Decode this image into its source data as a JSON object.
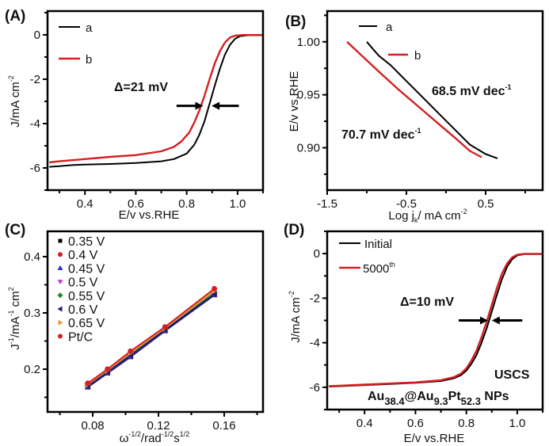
{
  "chart_data": [
    {
      "id": "A",
      "type": "line",
      "panel_label": "(A)",
      "xlabel": "E/v vs.RHE",
      "ylabel": "J/mA cm",
      "ylabel_sup": "-2",
      "xlim": [
        0.253,
        1.1
      ],
      "ylim": [
        -7,
        1.07
      ],
      "xticks": [
        0.4,
        0.6,
        0.8,
        1.0
      ],
      "xtick_labels": [
        "0.4",
        "0.6",
        "0.8",
        "1.0"
      ],
      "yticks": [
        0,
        -2,
        -4,
        -6
      ],
      "ytick_labels": [
        "0",
        "-2",
        "-4",
        "-6"
      ],
      "legend": {
        "position": "top-left",
        "entries": [
          {
            "name": "a",
            "color": "#000000"
          },
          {
            "name": "b",
            "color": "#d42020"
          }
        ]
      },
      "annotations": [
        {
          "text": "Δ=21 mV"
        }
      ],
      "arrows": {
        "y": -3.2,
        "left_from": 0.76,
        "left_to": 0.865,
        "right_from": 1.005,
        "right_to": 0.898
      },
      "series": [
        {
          "name": "a",
          "color": "#000000",
          "x": [
            0.26,
            0.3,
            0.35,
            0.4,
            0.5,
            0.6,
            0.7,
            0.75,
            0.8,
            0.83,
            0.85,
            0.87,
            0.89,
            0.91,
            0.93,
            0.95,
            0.97,
            0.99,
            1.01,
            1.04,
            1.1
          ],
          "y": [
            -5.95,
            -5.92,
            -5.87,
            -5.85,
            -5.82,
            -5.78,
            -5.7,
            -5.6,
            -5.35,
            -4.95,
            -4.5,
            -3.9,
            -3.1,
            -2.3,
            -1.55,
            -0.9,
            -0.45,
            -0.18,
            -0.06,
            -0.02,
            -0.02
          ]
        },
        {
          "name": "b",
          "color": "#d42020",
          "x": [
            0.26,
            0.3,
            0.35,
            0.4,
            0.5,
            0.6,
            0.7,
            0.75,
            0.78,
            0.81,
            0.83,
            0.85,
            0.87,
            0.89,
            0.91,
            0.93,
            0.95,
            0.97,
            0.99,
            1.02,
            1.1
          ],
          "y": [
            -5.75,
            -5.7,
            -5.65,
            -5.6,
            -5.5,
            -5.42,
            -5.25,
            -5.05,
            -4.8,
            -4.4,
            -3.95,
            -3.4,
            -2.75,
            -2.0,
            -1.3,
            -0.75,
            -0.35,
            -0.12,
            -0.04,
            -0.01,
            -0.01
          ]
        }
      ]
    },
    {
      "id": "B",
      "type": "line",
      "panel_label": "(B)",
      "xlabel": "Log j",
      "xlabel_sub": "k",
      "xlabel_tail": "/ mA cm",
      "xlabel_sup": "-2",
      "ylabel": "E/v vs.RHE",
      "xlim": [
        -1.5,
        1.22
      ],
      "ylim": [
        0.86,
        1.029
      ],
      "xticks": [
        -1.5,
        -0.5,
        0.5
      ],
      "xtick_labels": [
        "-1.5",
        "-0.5",
        "0.5"
      ],
      "yticks": [
        1.0,
        0.95,
        0.9
      ],
      "ytick_labels": [
        "1.00",
        "0.95",
        "0.90"
      ],
      "legend": {
        "position": "top-center",
        "entries": [
          {
            "name": "a",
            "color": "#000000"
          },
          {
            "name": "b",
            "color": "#d42020"
          }
        ]
      },
      "annotations": [
        {
          "text": "68.5 mV dec",
          "sup": "-1",
          "for": "a"
        },
        {
          "text": "70.7 mV dec",
          "sup": "-1",
          "for": "b"
        }
      ],
      "series": [
        {
          "name": "a",
          "color": "#000000",
          "x": [
            -1.0,
            -0.85,
            -0.7,
            -0.5,
            -0.3,
            -0.1,
            0.1,
            0.3,
            0.5,
            0.65
          ],
          "y": [
            1.0,
            0.987,
            0.978,
            0.963,
            0.948,
            0.933,
            0.918,
            0.903,
            0.894,
            0.89
          ]
        },
        {
          "name": "b",
          "color": "#d42020",
          "x": [
            -1.25,
            -1.05,
            -0.85,
            -0.6,
            -0.35,
            -0.1,
            0.15,
            0.3,
            0.45
          ],
          "y": [
            1.0,
            0.986,
            0.972,
            0.955,
            0.939,
            0.923,
            0.907,
            0.897,
            0.891
          ]
        }
      ]
    },
    {
      "id": "C",
      "type": "scatter",
      "panel_label": "(C)",
      "xlabel": "ω",
      "xlabel_parts": [
        "ω",
        "-1/2",
        "/rad",
        "-1/2",
        "s",
        "1/2"
      ],
      "ylabel_parts": [
        "J",
        "-1",
        "/mA",
        "-1",
        " cm",
        "2"
      ],
      "xlim": [
        0.0525,
        0.1836
      ],
      "ylim": [
        0.124,
        0.445
      ],
      "xticks": [
        0.08,
        0.12,
        0.16
      ],
      "xtick_labels": [
        "0.08",
        "0.12",
        "0.16"
      ],
      "yticks": [
        0.4,
        0.3,
        0.2
      ],
      "ytick_labels": [
        "0.4",
        "0.3",
        "0.2"
      ],
      "legend": {
        "position": "top-left"
      },
      "x": [
        0.077,
        0.089,
        0.103,
        0.124,
        0.154
      ],
      "series": [
        {
          "name": "0.35 V",
          "marker": "square",
          "color": "#000000",
          "values": [
            0.168,
            0.193,
            0.222,
            0.268,
            0.332
          ]
        },
        {
          "name": "0.4 V",
          "marker": "circle",
          "color": "#d42020",
          "values": [
            0.169,
            0.194,
            0.223,
            0.269,
            0.333
          ]
        },
        {
          "name": "0.45 V",
          "marker": "triangle-up",
          "color": "#1f2fc0",
          "values": [
            0.169,
            0.194,
            0.223,
            0.269,
            0.333
          ]
        },
        {
          "name": "0.5 V",
          "marker": "triangle-down",
          "color": "#c43cd6",
          "values": [
            0.17,
            0.195,
            0.224,
            0.27,
            0.334
          ]
        },
        {
          "name": "0.55 V",
          "marker": "diamond",
          "color": "#1e8a2a",
          "values": [
            0.171,
            0.196,
            0.226,
            0.271,
            0.336
          ]
        },
        {
          "name": "0.6 V",
          "marker": "triangle-left",
          "color": "#1a1a7a",
          "values": [
            0.17,
            0.195,
            0.224,
            0.27,
            0.333
          ]
        },
        {
          "name": "0.65 V",
          "marker": "triangle-right",
          "color": "#e59a3a",
          "values": [
            0.173,
            0.198,
            0.229,
            0.273,
            0.339
          ]
        },
        {
          "name": "Pt/C",
          "marker": "circle",
          "color": "#d42020",
          "values": [
            0.175,
            0.2,
            0.232,
            0.275,
            0.343
          ]
        }
      ]
    },
    {
      "id": "D",
      "type": "line",
      "panel_label": "(D)",
      "xlabel": "E/v vs.RHE",
      "ylabel": "J/mA cm",
      "ylabel_sup": "-2",
      "xlim": [
        0.253,
        1.1
      ],
      "ylim": [
        -7,
        1.0
      ],
      "xticks": [
        0.4,
        0.6,
        0.8,
        1.0
      ],
      "xtick_labels": [
        "0.4",
        "0.6",
        "0.8",
        "1.0"
      ],
      "yticks": [
        0,
        -2,
        -4,
        -6
      ],
      "ytick_labels": [
        "0",
        "-2",
        "-4",
        "-6"
      ],
      "legend": {
        "position": "top-left",
        "entries": [
          {
            "name": "Initial",
            "color": "#000000"
          },
          {
            "name": "5000",
            "sup": "th",
            "color": "#d42020"
          }
        ]
      },
      "annotations": [
        {
          "text": "Δ=10 mV"
        },
        {
          "text": "USCS"
        },
        {
          "text_parts": [
            "Au",
            "38.4",
            "@Au",
            "9.3",
            "Pt",
            "52.3",
            " NPs"
          ]
        }
      ],
      "arrows": {
        "y": -3.0,
        "left_from": 0.77,
        "left_to": 0.885,
        "right_from": 1.02,
        "right_to": 0.9
      },
      "series": [
        {
          "name": "Initial",
          "color": "#000000",
          "x": [
            0.26,
            0.3,
            0.4,
            0.5,
            0.6,
            0.7,
            0.75,
            0.78,
            0.8,
            0.82,
            0.84,
            0.86,
            0.88,
            0.9,
            0.92,
            0.94,
            0.96,
            0.98,
            1.0,
            1.03,
            1.1
          ],
          "y": [
            -5.97,
            -5.95,
            -5.9,
            -5.85,
            -5.8,
            -5.72,
            -5.6,
            -5.45,
            -5.25,
            -4.95,
            -4.55,
            -4.0,
            -3.35,
            -2.6,
            -1.85,
            -1.15,
            -0.6,
            -0.25,
            -0.08,
            -0.02,
            -0.02
          ]
        },
        {
          "name": "5000th",
          "color": "#d42020",
          "x": [
            0.26,
            0.3,
            0.4,
            0.5,
            0.6,
            0.7,
            0.75,
            0.78,
            0.8,
            0.82,
            0.84,
            0.86,
            0.88,
            0.9,
            0.92,
            0.94,
            0.96,
            0.98,
            1.0,
            1.03,
            1.1
          ],
          "y": [
            -5.95,
            -5.93,
            -5.88,
            -5.83,
            -5.78,
            -5.68,
            -5.55,
            -5.38,
            -5.15,
            -4.8,
            -4.35,
            -3.75,
            -3.05,
            -2.3,
            -1.55,
            -0.9,
            -0.45,
            -0.17,
            -0.05,
            -0.01,
            -0.01
          ]
        }
      ]
    }
  ]
}
